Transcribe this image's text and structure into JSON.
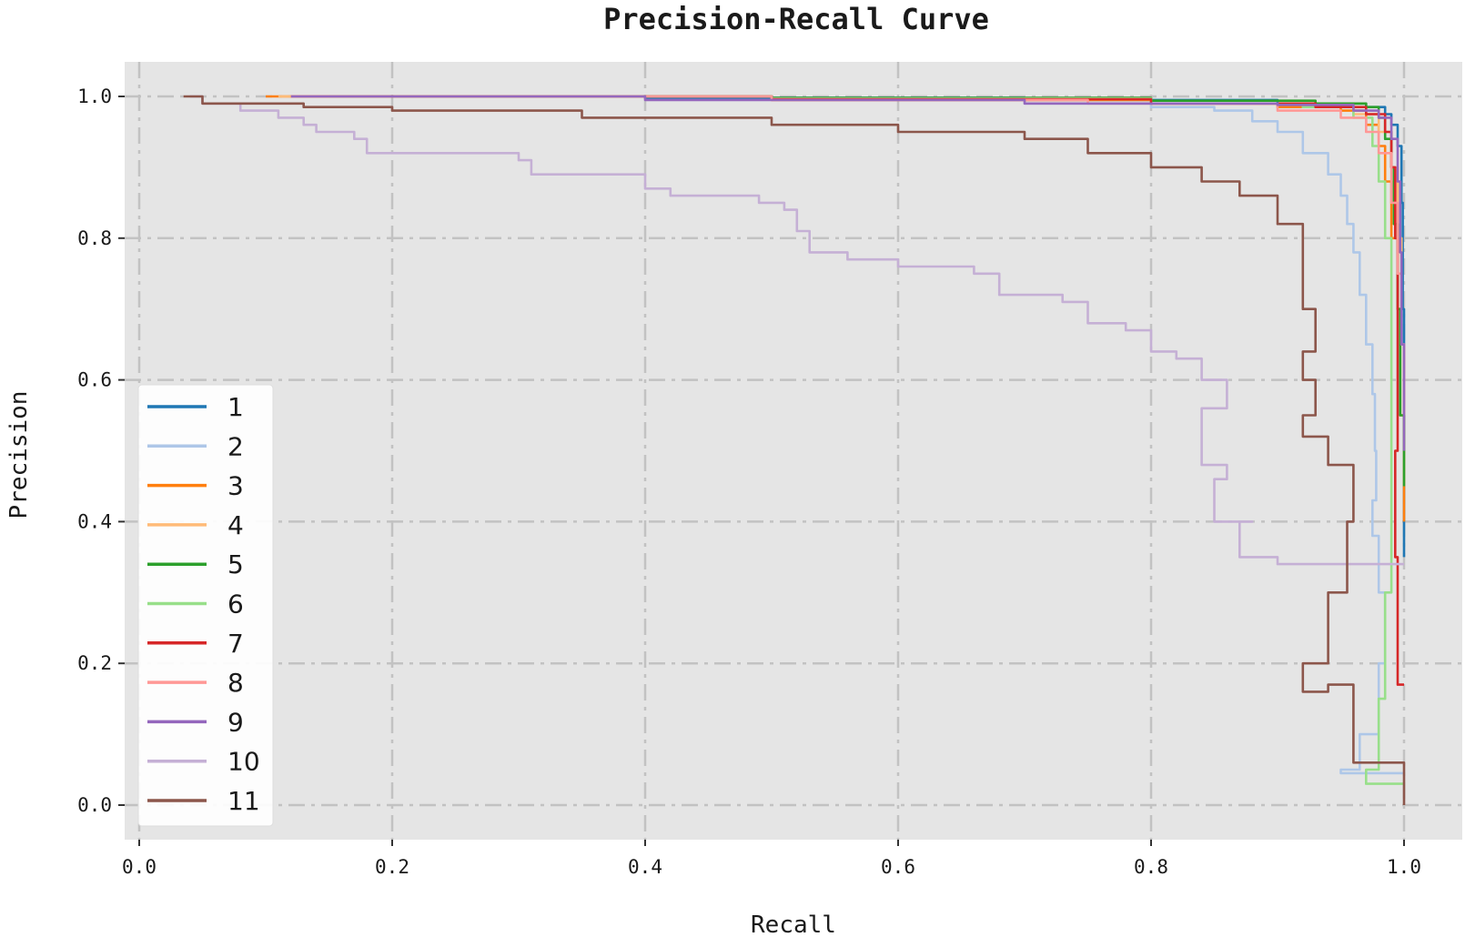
{
  "chart_data": {
    "type": "line",
    "title": "Precision-Recall Curve",
    "xlabel": "Recall",
    "ylabel": "Precision",
    "xlim": [
      0.0,
      1.0
    ],
    "ylim": [
      0.0,
      1.0
    ],
    "xticks": [
      "0.0",
      "0.2",
      "0.4",
      "0.6",
      "0.8",
      "1.0"
    ],
    "yticks": [
      "0.0",
      "0.2",
      "0.4",
      "0.6",
      "0.8",
      "1.0"
    ],
    "grid": true,
    "legend_position": "center-left",
    "series": [
      {
        "name": "1",
        "color": "#1f77b4",
        "points": [
          [
            0.12,
            1.0
          ],
          [
            0.4,
            0.998
          ],
          [
            0.7,
            0.995
          ],
          [
            0.9,
            0.99
          ],
          [
            0.97,
            0.985
          ],
          [
            0.985,
            0.975
          ],
          [
            0.99,
            0.96
          ],
          [
            0.995,
            0.93
          ],
          [
            0.998,
            0.85
          ],
          [
            0.999,
            0.7
          ],
          [
            1.0,
            0.5
          ],
          [
            1.0,
            0.35
          ]
        ]
      },
      {
        "name": "2",
        "color": "#aec7e8",
        "points": [
          [
            0.18,
            1.0
          ],
          [
            0.5,
            0.995
          ],
          [
            0.7,
            0.99
          ],
          [
            0.8,
            0.985
          ],
          [
            0.85,
            0.98
          ],
          [
            0.88,
            0.965
          ],
          [
            0.9,
            0.95
          ],
          [
            0.92,
            0.92
          ],
          [
            0.94,
            0.89
          ],
          [
            0.95,
            0.86
          ],
          [
            0.955,
            0.82
          ],
          [
            0.96,
            0.78
          ],
          [
            0.965,
            0.72
          ],
          [
            0.97,
            0.65
          ],
          [
            0.975,
            0.58
          ],
          [
            0.977,
            0.5
          ],
          [
            0.978,
            0.43
          ],
          [
            0.975,
            0.38
          ],
          [
            0.98,
            0.3
          ],
          [
            0.985,
            0.2
          ],
          [
            0.98,
            0.1
          ],
          [
            0.965,
            0.05
          ],
          [
            0.95,
            0.045
          ],
          [
            1.0,
            0.045
          ]
        ]
      },
      {
        "name": "3",
        "color": "#ff7f0e",
        "points": [
          [
            0.1,
            1.0
          ],
          [
            0.5,
            0.995
          ],
          [
            0.8,
            0.99
          ],
          [
            0.9,
            0.985
          ],
          [
            0.95,
            0.98
          ],
          [
            0.97,
            0.96
          ],
          [
            0.98,
            0.93
          ],
          [
            0.985,
            0.88
          ],
          [
            0.99,
            0.8
          ],
          [
            0.995,
            0.7
          ],
          [
            0.997,
            0.55
          ],
          [
            1.0,
            0.4
          ]
        ]
      },
      {
        "name": "4",
        "color": "#ffbb78",
        "points": [
          [
            0.11,
            1.0
          ],
          [
            0.5,
            0.996
          ],
          [
            0.8,
            0.99
          ],
          [
            0.92,
            0.985
          ],
          [
            0.96,
            0.975
          ],
          [
            0.98,
            0.95
          ],
          [
            0.99,
            0.9
          ],
          [
            0.995,
            0.8
          ],
          [
            0.998,
            0.65
          ],
          [
            1.0,
            0.45
          ]
        ]
      },
      {
        "name": "5",
        "color": "#2ca02c",
        "points": [
          [
            0.15,
            1.0
          ],
          [
            0.5,
            0.998
          ],
          [
            0.8,
            0.994
          ],
          [
            0.93,
            0.99
          ],
          [
            0.97,
            0.985
          ],
          [
            0.98,
            0.97
          ],
          [
            0.985,
            0.94
          ],
          [
            0.99,
            0.9
          ],
          [
            0.992,
            0.82
          ],
          [
            0.995,
            0.7
          ],
          [
            0.997,
            0.55
          ],
          [
            1.0,
            0.45
          ]
        ]
      },
      {
        "name": "6",
        "color": "#98df8a",
        "points": [
          [
            0.15,
            1.0
          ],
          [
            0.5,
            0.997
          ],
          [
            0.8,
            0.99
          ],
          [
            0.92,
            0.985
          ],
          [
            0.96,
            0.97
          ],
          [
            0.975,
            0.93
          ],
          [
            0.98,
            0.88
          ],
          [
            0.985,
            0.8
          ],
          [
            0.99,
            0.7
          ],
          [
            0.99,
            0.5
          ],
          [
            0.99,
            0.3
          ],
          [
            0.985,
            0.15
          ],
          [
            0.98,
            0.05
          ],
          [
            0.97,
            0.03
          ],
          [
            1.0,
            0.03
          ]
        ]
      },
      {
        "name": "7",
        "color": "#d62728",
        "points": [
          [
            0.12,
            1.0
          ],
          [
            0.5,
            0.996
          ],
          [
            0.8,
            0.99
          ],
          [
            0.93,
            0.985
          ],
          [
            0.97,
            0.975
          ],
          [
            0.985,
            0.95
          ],
          [
            0.99,
            0.9
          ],
          [
            0.993,
            0.8
          ],
          [
            0.995,
            0.65
          ],
          [
            0.995,
            0.5
          ],
          [
            0.993,
            0.35
          ],
          [
            0.995,
            0.17
          ],
          [
            1.0,
            0.17
          ]
        ]
      },
      {
        "name": "8",
        "color": "#ff9896",
        "points": [
          [
            0.12,
            1.0
          ],
          [
            0.5,
            0.995
          ],
          [
            0.75,
            0.99
          ],
          [
            0.9,
            0.98
          ],
          [
            0.95,
            0.97
          ],
          [
            0.97,
            0.95
          ],
          [
            0.98,
            0.92
          ],
          [
            0.99,
            0.85
          ],
          [
            0.995,
            0.75
          ],
          [
            0.998,
            0.65
          ],
          [
            1.0,
            0.55
          ]
        ]
      },
      {
        "name": "9",
        "color": "#9467bd",
        "points": [
          [
            0.12,
            1.0
          ],
          [
            0.4,
            0.995
          ],
          [
            0.7,
            0.99
          ],
          [
            0.9,
            0.988
          ],
          [
            0.96,
            0.98
          ],
          [
            0.98,
            0.97
          ],
          [
            0.99,
            0.94
          ],
          [
            0.995,
            0.88
          ],
          [
            0.997,
            0.78
          ],
          [
            0.998,
            0.65
          ],
          [
            1.0,
            0.5
          ]
        ]
      },
      {
        "name": "10",
        "color": "#c5b0d5",
        "points": [
          [
            0.04,
            1.0
          ],
          [
            0.05,
            0.99
          ],
          [
            0.08,
            0.98
          ],
          [
            0.11,
            0.97
          ],
          [
            0.13,
            0.96
          ],
          [
            0.14,
            0.95
          ],
          [
            0.17,
            0.94
          ],
          [
            0.18,
            0.92
          ],
          [
            0.3,
            0.91
          ],
          [
            0.31,
            0.89
          ],
          [
            0.4,
            0.87
          ],
          [
            0.42,
            0.86
          ],
          [
            0.49,
            0.85
          ],
          [
            0.51,
            0.84
          ],
          [
            0.52,
            0.81
          ],
          [
            0.53,
            0.78
          ],
          [
            0.56,
            0.77
          ],
          [
            0.6,
            0.76
          ],
          [
            0.66,
            0.75
          ],
          [
            0.68,
            0.72
          ],
          [
            0.73,
            0.71
          ],
          [
            0.75,
            0.68
          ],
          [
            0.78,
            0.67
          ],
          [
            0.8,
            0.64
          ],
          [
            0.82,
            0.63
          ],
          [
            0.84,
            0.6
          ],
          [
            0.86,
            0.56
          ],
          [
            0.84,
            0.48
          ],
          [
            0.86,
            0.46
          ],
          [
            0.85,
            0.4
          ],
          [
            0.88,
            0.4
          ],
          [
            0.87,
            0.35
          ],
          [
            0.9,
            0.34
          ],
          [
            1.0,
            0.34
          ]
        ]
      },
      {
        "name": "11",
        "color": "#8c564b",
        "points": [
          [
            0.035,
            1.0
          ],
          [
            0.05,
            0.99
          ],
          [
            0.13,
            0.985
          ],
          [
            0.2,
            0.98
          ],
          [
            0.35,
            0.97
          ],
          [
            0.5,
            0.96
          ],
          [
            0.6,
            0.95
          ],
          [
            0.7,
            0.94
          ],
          [
            0.75,
            0.92
          ],
          [
            0.8,
            0.9
          ],
          [
            0.84,
            0.88
          ],
          [
            0.87,
            0.86
          ],
          [
            0.9,
            0.82
          ],
          [
            0.92,
            0.78
          ],
          [
            0.92,
            0.7
          ],
          [
            0.93,
            0.64
          ],
          [
            0.92,
            0.6
          ],
          [
            0.93,
            0.55
          ],
          [
            0.92,
            0.52
          ],
          [
            0.94,
            0.48
          ],
          [
            0.96,
            0.4
          ],
          [
            0.955,
            0.3
          ],
          [
            0.94,
            0.2
          ],
          [
            0.92,
            0.16
          ],
          [
            0.94,
            0.17
          ],
          [
            0.96,
            0.16
          ],
          [
            0.96,
            0.06
          ],
          [
            1.0,
            0.06
          ],
          [
            1.0,
            0.0
          ]
        ]
      }
    ]
  }
}
